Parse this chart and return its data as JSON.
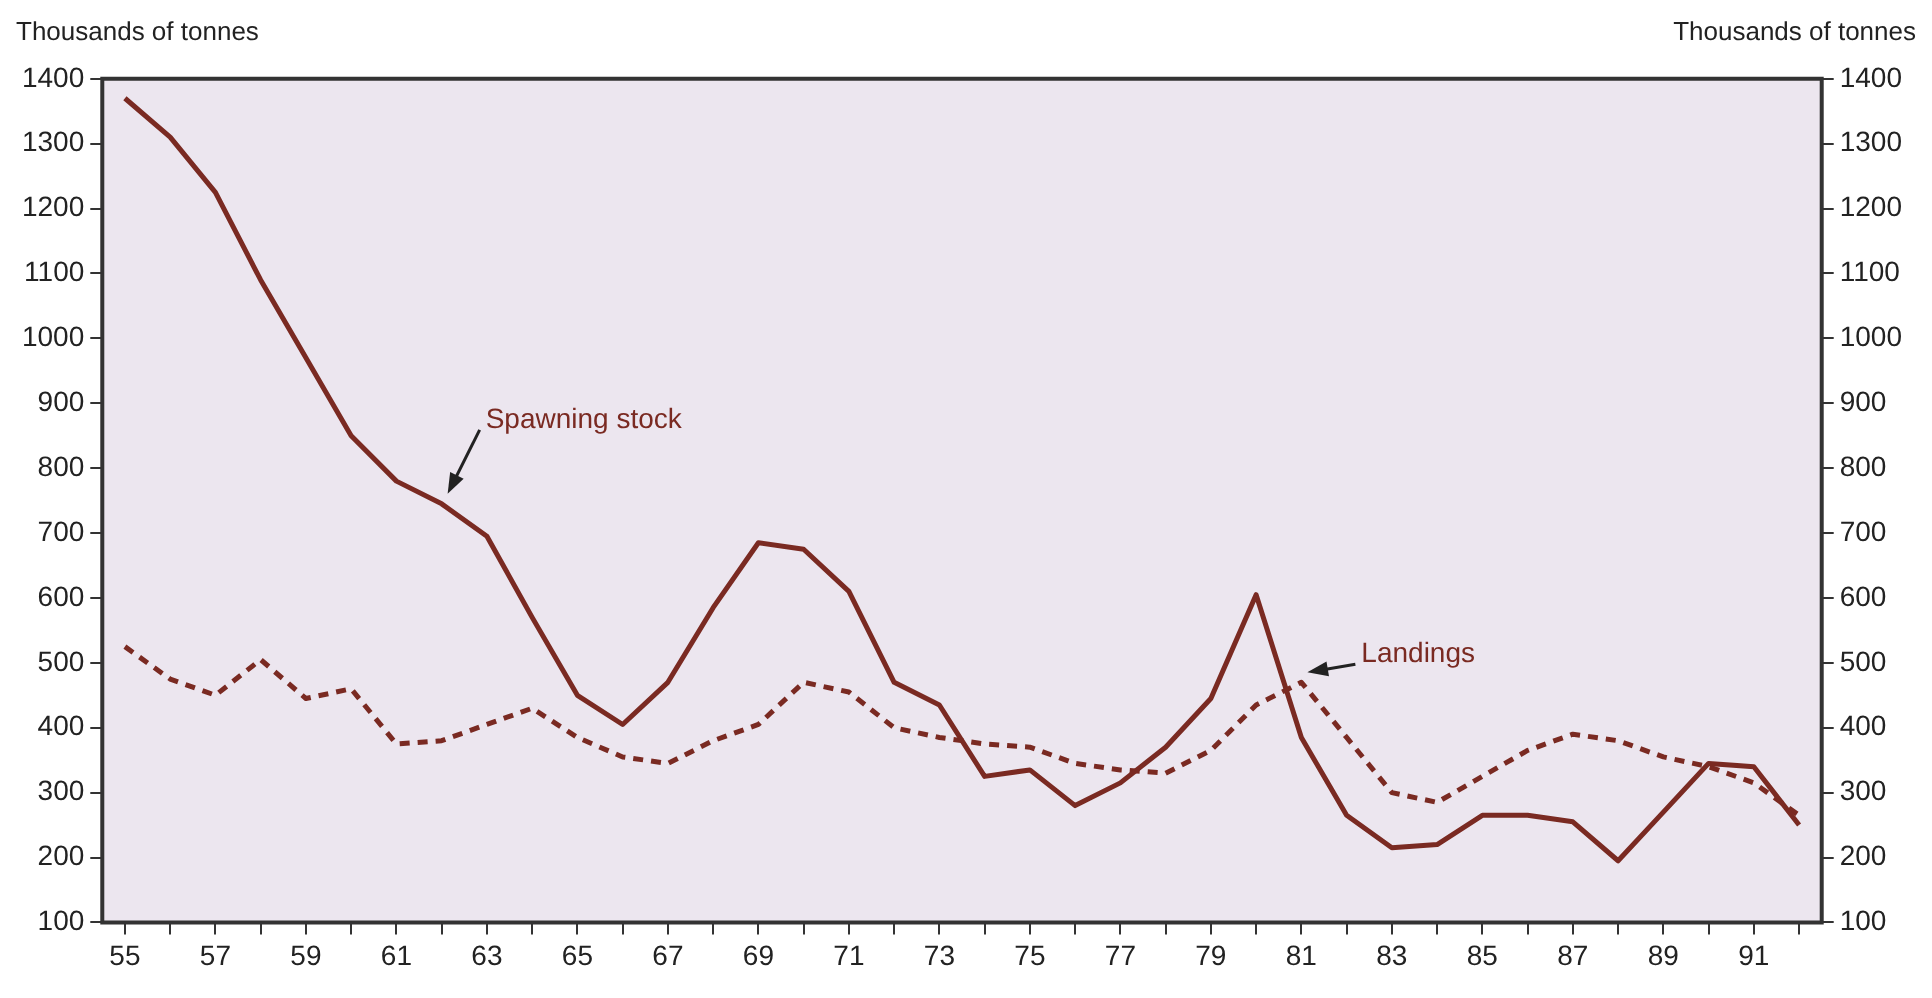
{
  "chart_data": {
    "type": "line",
    "ylabel": "Thousands of tonnes",
    "y2label": "Thousands of tonnes",
    "categories": [
      "55",
      null,
      "57",
      null,
      "59",
      null,
      "61",
      null,
      "63",
      null,
      "65",
      null,
      "67",
      null,
      "69",
      null,
      "71",
      null,
      "73",
      null,
      "75",
      null,
      "77",
      null,
      "79",
      null,
      "81",
      null,
      "83",
      null,
      "85",
      null,
      "87",
      null,
      "89",
      null,
      "91",
      null
    ],
    "series": [
      {
        "name": "Spawning stock",
        "color": "#7a2a22",
        "line_style": "solid",
        "values": [
          1370,
          1310,
          1225,
          1090,
          970,
          850,
          780,
          745,
          695,
          570,
          450,
          405,
          470,
          585,
          685,
          675,
          610,
          470,
          435,
          325,
          335,
          280,
          315,
          370,
          445,
          605,
          385,
          265,
          215,
          220,
          265,
          265,
          255,
          195,
          270,
          345,
          340,
          250
        ]
      },
      {
        "name": "Landings",
        "color": "#7a2a22",
        "line_style": "dashed",
        "values": [
          525,
          475,
          450,
          505,
          445,
          460,
          375,
          380,
          405,
          430,
          385,
          355,
          345,
          380,
          405,
          470,
          455,
          400,
          385,
          375,
          370,
          345,
          335,
          330,
          365,
          435,
          470,
          385,
          300,
          285,
          325,
          365,
          390,
          380,
          355,
          340,
          315,
          265
        ]
      }
    ],
    "ylim": [
      100,
      1400
    ],
    "yticks": [
      100,
      200,
      300,
      400,
      500,
      600,
      700,
      800,
      900,
      1000,
      1100,
      1200,
      1300,
      1400
    ],
    "y2lim": [
      100,
      1400
    ],
    "y2ticks": [
      100,
      200,
      300,
      400,
      500,
      600,
      700,
      800,
      900,
      1000,
      1100,
      1200,
      1300,
      1400
    ],
    "grid": false,
    "legend": false,
    "marker": "none"
  }
}
